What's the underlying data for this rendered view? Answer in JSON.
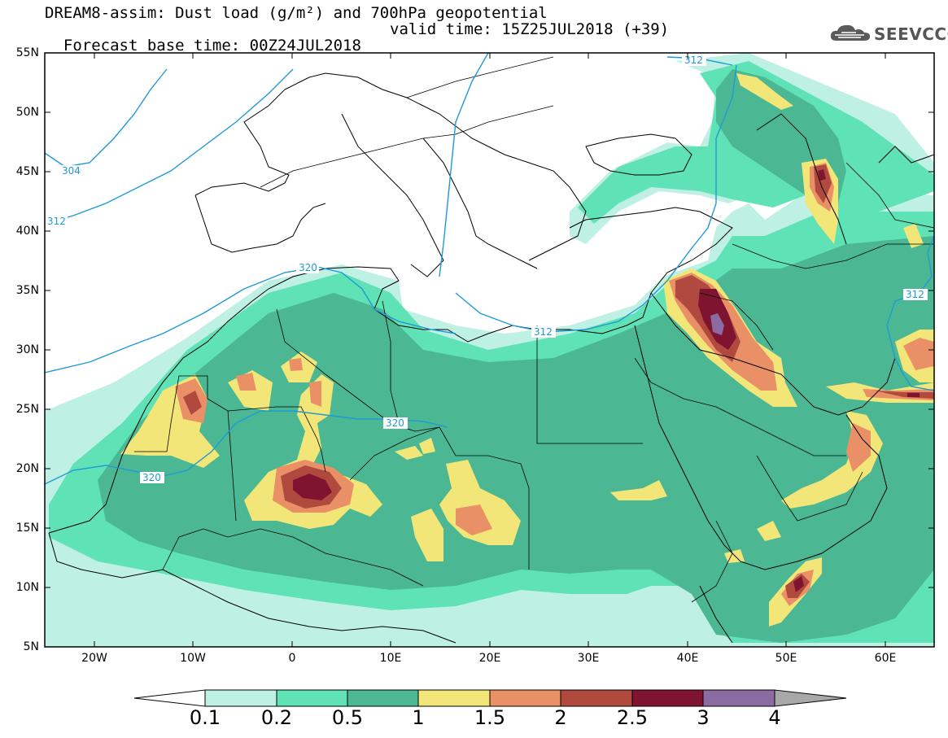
{
  "title": {
    "line1": "DREAM8-assim: Dust load (g/m²) and 700hPa geopotential",
    "line2_base": "Forecast base time: 00Z24JUL2018",
    "line2_valid": "valid time: 15Z25JUL2018 (+39)"
  },
  "logo": {
    "text": "SEEVCCC",
    "icon": "cloud-icon",
    "color": "#555555"
  },
  "map": {
    "lon_range": [
      -25,
      65
    ],
    "lat_range": [
      5,
      55
    ],
    "lat_labels": [
      "55N",
      "50N",
      "45N",
      "40N",
      "35N",
      "30N",
      "25N",
      "20N",
      "15N",
      "10N",
      "5N"
    ],
    "lon_labels": [
      "20W",
      "10W",
      "0",
      "10E",
      "20E",
      "30E",
      "40E",
      "50E",
      "60E"
    ],
    "contour_labels": [
      "304",
      "312",
      "320",
      "320",
      "320",
      "312",
      "312",
      "312"
    ],
    "contour_color": "#1f9ad6"
  },
  "colorbar": {
    "labels": [
      "0.1",
      "0.2",
      "0.5",
      "1",
      "1.5",
      "2",
      "2.5",
      "3",
      "4"
    ],
    "colors": [
      "#bff0e4",
      "#5ee2b6",
      "#4bb893",
      "#f2e678",
      "#ea9066",
      "#b04a3e",
      "#7e1430",
      "#8c6aa2"
    ],
    "under_color": "#ffffff",
    "over_color": "#a8a8a8"
  }
}
